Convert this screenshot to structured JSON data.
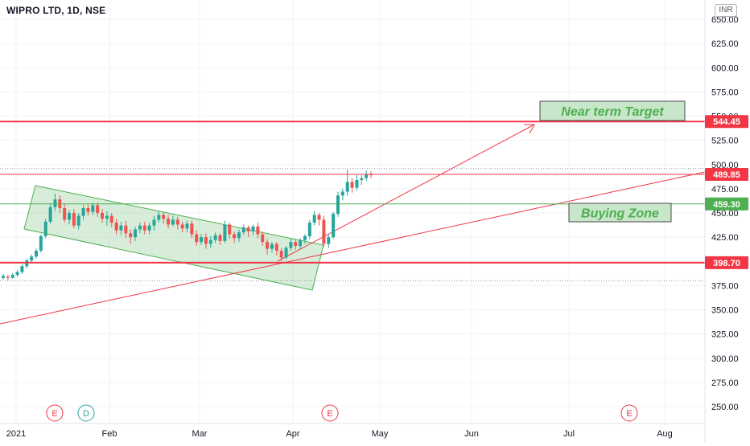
{
  "header": {
    "title": "WIPRO LTD, 1D, NSE",
    "currency": "INR"
  },
  "chart_data": {
    "type": "candlestick",
    "symbol": "WIPRO LTD",
    "interval": "1D",
    "exchange": "NSE",
    "currency": "INR",
    "ylim": [
      230,
      660
    ],
    "y_ticks": [
      "250.00",
      "275.00",
      "300.00",
      "325.00",
      "350.00",
      "375.00",
      "400.00",
      "425.00",
      "450.00",
      "475.00",
      "500.00",
      "525.00",
      "550.00",
      "575.00",
      "600.00",
      "625.00",
      "650.00"
    ],
    "x_ticks": [
      "2021",
      "Feb",
      "Mar",
      "Apr",
      "May",
      "Jun",
      "Jul",
      "Aug"
    ],
    "levels": [
      {
        "name": "near-term-target",
        "value": "544.45",
        "color": "#f23645"
      },
      {
        "name": "last-price",
        "value": "489.85",
        "color": "#f23645"
      },
      {
        "name": "buying-zone",
        "value": "459.30",
        "color": "#4caf50"
      },
      {
        "name": "support",
        "value": "398.70",
        "color": "#f23645"
      }
    ],
    "dotted_levels": [
      496,
      380
    ],
    "annotations": [
      {
        "name": "near-term-target-label",
        "text": "Near term Target"
      },
      {
        "name": "buying-zone-label",
        "text": "Buying Zone"
      }
    ],
    "event_markers": [
      {
        "label": "E",
        "color": "#f23645"
      },
      {
        "label": "D",
        "color": "#26a69a"
      },
      {
        "label": "E",
        "color": "#f23645"
      },
      {
        "label": "E",
        "color": "#f23645"
      }
    ],
    "candles": [
      [
        383,
        385,
        381,
        387
      ],
      [
        384,
        383,
        380,
        386
      ],
      [
        383,
        386,
        382,
        388
      ],
      [
        386,
        389,
        384,
        391
      ],
      [
        389,
        395,
        387,
        397
      ],
      [
        395,
        401,
        393,
        403
      ],
      [
        401,
        405,
        399,
        407
      ],
      [
        405,
        411,
        403,
        413
      ],
      [
        411,
        426,
        409,
        428
      ],
      [
        426,
        441,
        424,
        444
      ],
      [
        441,
        456,
        439,
        460
      ],
      [
        456,
        464,
        452,
        470
      ],
      [
        464,
        455,
        450,
        468
      ],
      [
        455,
        443,
        440,
        459
      ],
      [
        443,
        450,
        438,
        453
      ],
      [
        450,
        437,
        434,
        454
      ],
      [
        437,
        447,
        433,
        450
      ],
      [
        447,
        455,
        443,
        458
      ],
      [
        455,
        451,
        447,
        459
      ],
      [
        451,
        458,
        448,
        461
      ],
      [
        458,
        450,
        446,
        461
      ],
      [
        450,
        444,
        440,
        454
      ],
      [
        444,
        447,
        437,
        452
      ],
      [
        447,
        440,
        435,
        450
      ],
      [
        440,
        432,
        428,
        444
      ],
      [
        432,
        437,
        427,
        441
      ],
      [
        437,
        429,
        424,
        442
      ],
      [
        429,
        425,
        418,
        433
      ],
      [
        425,
        433,
        421,
        436
      ],
      [
        433,
        437,
        429,
        440
      ],
      [
        437,
        432,
        428,
        441
      ],
      [
        432,
        437,
        428,
        440
      ],
      [
        437,
        443,
        432,
        447
      ],
      [
        443,
        448,
        440,
        452
      ],
      [
        448,
        444,
        439,
        451
      ],
      [
        444,
        438,
        434,
        448
      ],
      [
        438,
        443,
        436,
        447
      ],
      [
        443,
        438,
        433,
        446
      ],
      [
        438,
        434,
        430,
        441
      ],
      [
        434,
        439,
        430,
        442
      ],
      [
        439,
        428,
        424,
        442
      ],
      [
        428,
        420,
        416,
        432
      ],
      [
        420,
        425,
        417,
        428
      ],
      [
        425,
        418,
        413,
        429
      ],
      [
        418,
        422,
        414,
        426
      ],
      [
        422,
        427,
        419,
        430
      ],
      [
        427,
        421,
        417,
        429
      ],
      [
        421,
        438,
        419,
        442
      ],
      [
        438,
        428,
        423,
        440
      ],
      [
        428,
        424,
        419,
        431
      ],
      [
        424,
        430,
        420,
        433
      ],
      [
        430,
        435,
        427,
        438
      ],
      [
        435,
        431,
        425,
        437
      ],
      [
        431,
        436,
        427,
        438
      ],
      [
        436,
        428,
        424,
        440
      ],
      [
        428,
        420,
        416,
        431
      ],
      [
        420,
        413,
        407,
        423
      ],
      [
        413,
        418,
        409,
        420
      ],
      [
        418,
        411,
        406,
        420
      ],
      [
        411,
        404,
        400,
        414
      ],
      [
        404,
        414,
        402,
        416
      ],
      [
        414,
        420,
        411,
        424
      ],
      [
        420,
        416,
        412,
        423
      ],
      [
        416,
        422,
        413,
        424
      ],
      [
        422,
        426,
        418,
        428
      ],
      [
        426,
        440,
        423,
        443
      ],
      [
        440,
        448,
        437,
        452
      ],
      [
        448,
        443,
        437,
        450
      ],
      [
        443,
        418,
        415,
        447
      ],
      [
        418,
        425,
        414,
        428
      ],
      [
        425,
        449,
        423,
        451
      ],
      [
        449,
        468,
        446,
        472
      ],
      [
        468,
        472,
        463,
        475
      ],
      [
        472,
        482,
        468,
        495
      ],
      [
        482,
        476,
        471,
        486
      ],
      [
        476,
        484,
        473,
        489
      ],
      [
        484,
        486,
        479,
        489
      ],
      [
        486,
        490,
        483,
        494
      ],
      [
        490,
        489,
        486,
        493
      ]
    ]
  }
}
